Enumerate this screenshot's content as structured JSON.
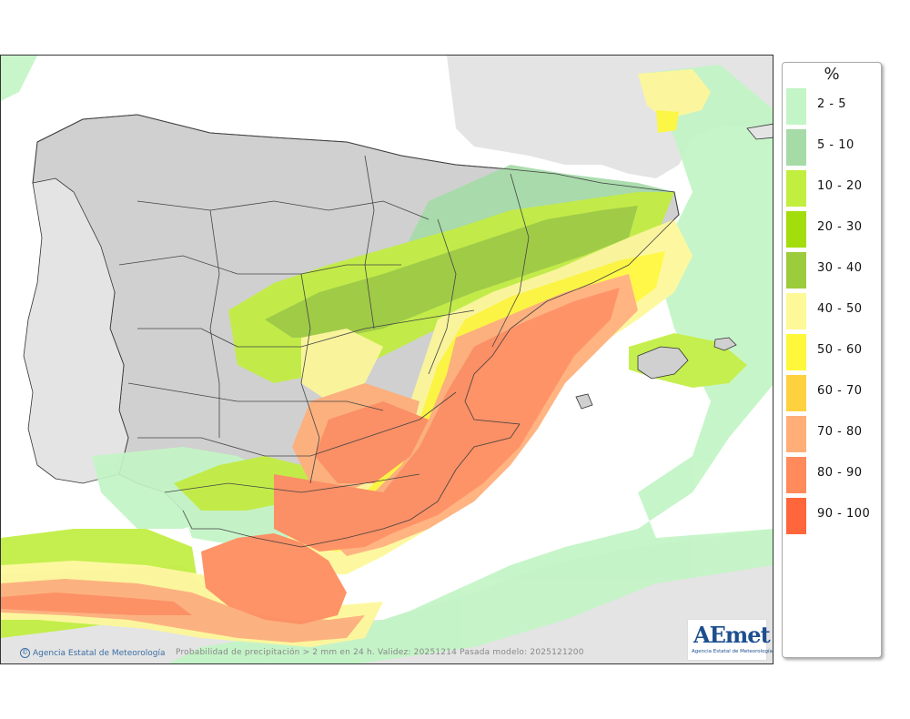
{
  "legend": {
    "title": "%",
    "items": [
      {
        "label": "2 - 5",
        "color": "#c3f5c6"
      },
      {
        "label": "5 - 10",
        "color": "#a6dba8"
      },
      {
        "label": "10 - 20",
        "color": "#c1ee3f"
      },
      {
        "label": "20 - 30",
        "color": "#a3dd0b"
      },
      {
        "label": "30 - 40",
        "color": "#9ccb3c"
      },
      {
        "label": "40 - 50",
        "color": "#fdf898"
      },
      {
        "label": "50 - 60",
        "color": "#fff83a"
      },
      {
        "label": "60 - 70",
        "color": "#ffd13f"
      },
      {
        "label": "70 - 80",
        "color": "#ffae78"
      },
      {
        "label": "80 - 90",
        "color": "#ff8a5c"
      },
      {
        "label": "90 - 100",
        "color": "#ff663b"
      }
    ]
  },
  "footer": {
    "credit": "Agencia Estatal de Meteorología",
    "caption": "Probabilidad de precipitación > 2 mm en 24 h. Validez: 20251214 Pasada modelo: 2025121200"
  },
  "logo": {
    "text": "AEmet",
    "subtitle": "Agencia Estatal de Meteorología"
  },
  "colors": {
    "land": "#d0d0d0",
    "outside_land": "#e2e2e2",
    "sea": "#ffffff",
    "border": "#333333"
  }
}
